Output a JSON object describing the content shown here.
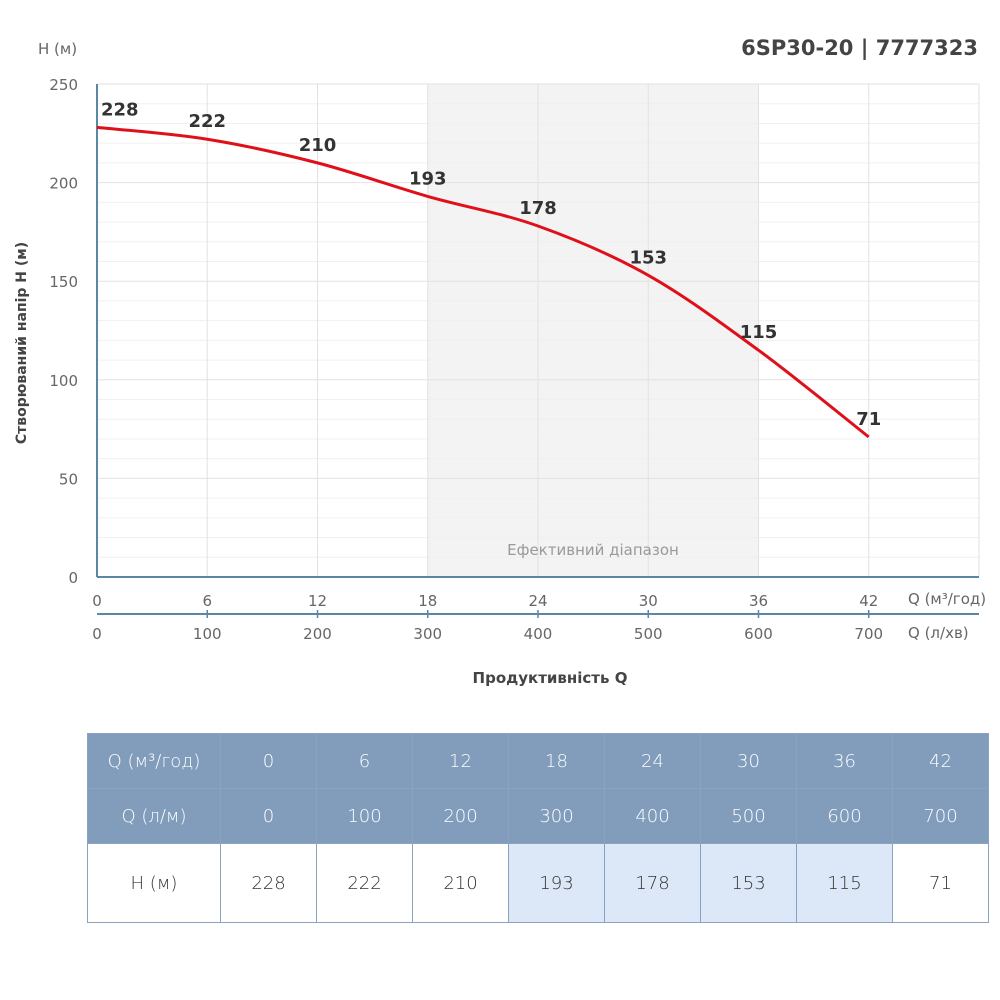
{
  "title": "6SP30-20 | 7777323",
  "chart_data": {
    "type": "line",
    "ylabel": "Створюваний напір H (м)",
    "y_unit_label": "H (м)",
    "xlabel": "Продуктивність Q",
    "x_unit_label": "Q (м³/год)",
    "x2_unit_label": "Q (л/хв)",
    "xlim": [
      0,
      48
    ],
    "ylim": [
      0,
      250
    ],
    "x_ticks": [
      "0",
      "6",
      "12",
      "18",
      "24",
      "30",
      "36",
      "42"
    ],
    "x2_ticks": [
      "0",
      "100",
      "200",
      "300",
      "400",
      "500",
      "600",
      "700"
    ],
    "y_ticks": [
      "0",
      "50",
      "100",
      "150",
      "200",
      "250"
    ],
    "x": [
      0,
      6,
      12,
      18,
      24,
      30,
      36,
      42
    ],
    "values": [
      228,
      222,
      210,
      193,
      178,
      153,
      115,
      71
    ],
    "efficient_range": [
      18,
      36
    ],
    "efficient_range_label": "Ефективний діапазон",
    "line_color": "#e0101a",
    "grid": true
  },
  "table": {
    "rows": [
      {
        "label": "Q (м³/год)",
        "values": [
          "0",
          "6",
          "12",
          "18",
          "24",
          "30",
          "36",
          "42"
        ]
      },
      {
        "label": "Q (л/м)",
        "values": [
          "0",
          "100",
          "200",
          "300",
          "400",
          "500",
          "600",
          "700"
        ]
      },
      {
        "label": "H (м)",
        "values": [
          "228",
          "222",
          "210",
          "193",
          "178",
          "153",
          "115",
          "71"
        ]
      }
    ]
  }
}
